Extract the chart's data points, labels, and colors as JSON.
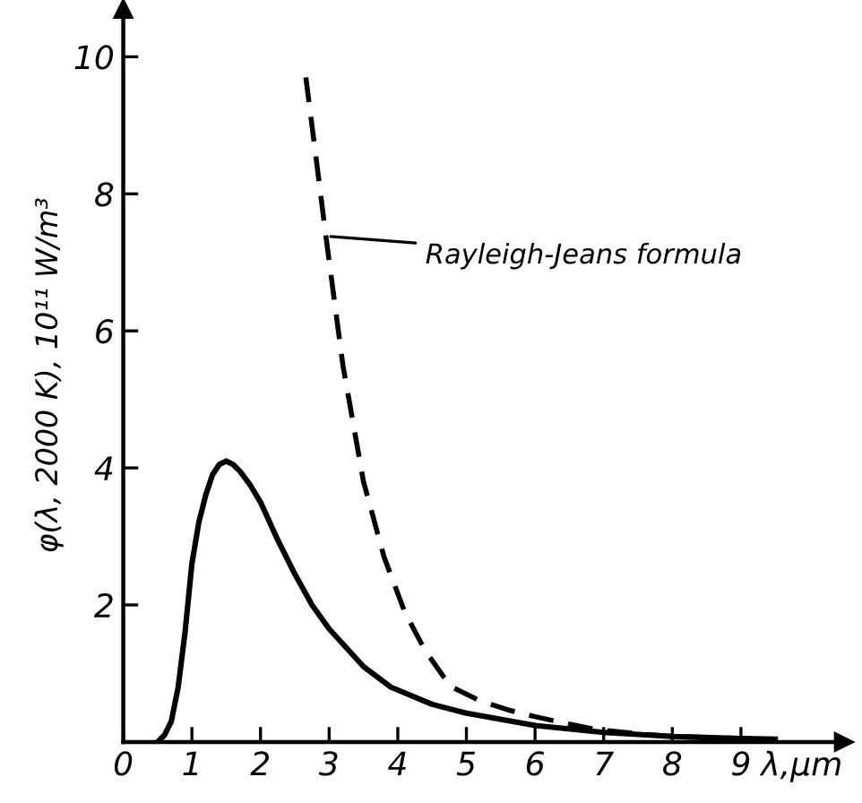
{
  "chart_data": {
    "type": "line",
    "xlabel": "λ,μm",
    "ylabel": "φ(λ, 2000 K), 10¹¹ W/m³",
    "xlim": [
      0,
      10.5
    ],
    "ylim": [
      0,
      10.7
    ],
    "xticks": [
      0,
      1,
      2,
      3,
      4,
      5,
      6,
      7,
      8,
      9
    ],
    "yticks": [
      2,
      4,
      6,
      8,
      10
    ],
    "grid": false,
    "marker": "none",
    "annotations": [
      "Rayleigh-Jeans formula"
    ],
    "legend": false,
    "series": [
      {
        "color": "#000000",
        "line_style": "solid",
        "x": [
          0.5,
          0.6,
          0.7,
          0.8,
          0.9,
          1.0,
          1.1,
          1.2,
          1.3,
          1.4,
          1.5,
          1.6,
          1.7,
          1.85,
          2.0,
          2.25,
          2.5,
          2.75,
          3.0,
          3.5,
          3.9,
          4.5,
          5.0,
          6.0,
          7.0,
          8.0,
          9.0,
          9.5
        ],
        "values": [
          0,
          0.1,
          0.3,
          0.8,
          1.6,
          2.6,
          3.2,
          3.6,
          3.9,
          4.05,
          4.1,
          4.05,
          3.95,
          3.75,
          3.5,
          2.95,
          2.45,
          2.0,
          1.65,
          1.1,
          0.8,
          0.55,
          0.42,
          0.24,
          0.14,
          0.08,
          0.05,
          0.04
        ]
      },
      {
        "color": "#000000",
        "line_style": "dashed",
        "x": [
          2.66,
          2.8,
          2.95,
          3.2,
          3.5,
          3.8,
          4.1,
          4.4,
          4.77,
          5.2,
          5.6,
          6.0,
          6.5,
          6.9,
          7.5,
          8.0,
          9.0,
          9.4
        ],
        "values": [
          9.7,
          8.6,
          7.4,
          5.5,
          3.8,
          2.7,
          1.9,
          1.33,
          0.81,
          0.6,
          0.47,
          0.37,
          0.26,
          0.18,
          0.12,
          0.08,
          0.05,
          0.04
        ]
      }
    ]
  }
}
